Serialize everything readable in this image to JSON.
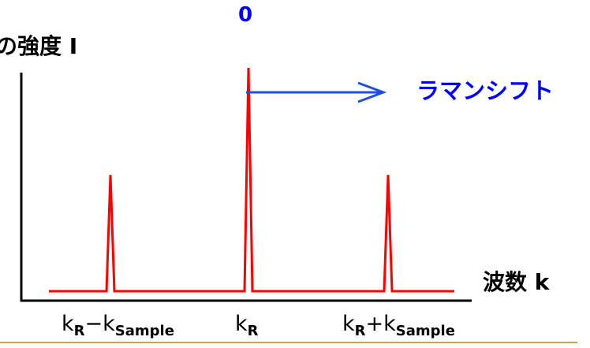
{
  "labels": {
    "zero": "0",
    "y_axis": "の強度 I",
    "shift": "ラマンシフト",
    "x_axis": "波数 k"
  },
  "ticks": {
    "left": {
      "base": "k",
      "sub1": "R",
      "op": "−k",
      "sub2": "Sample"
    },
    "mid": {
      "base": "k",
      "sub1": "R"
    },
    "right": {
      "base": "k",
      "sub1": "R",
      "op": "+k",
      "sub2": "Sample"
    }
  },
  "colors": {
    "spectrum": "#ff0000",
    "shift_label": "#0000ff",
    "arrow": "#1f4fe0",
    "zero_label": "#0000ff",
    "axis": "#000000",
    "footer_rule": "#c8a640"
  },
  "peaks": {
    "center_intensity": 1.0,
    "side_intensity": 0.52
  }
}
